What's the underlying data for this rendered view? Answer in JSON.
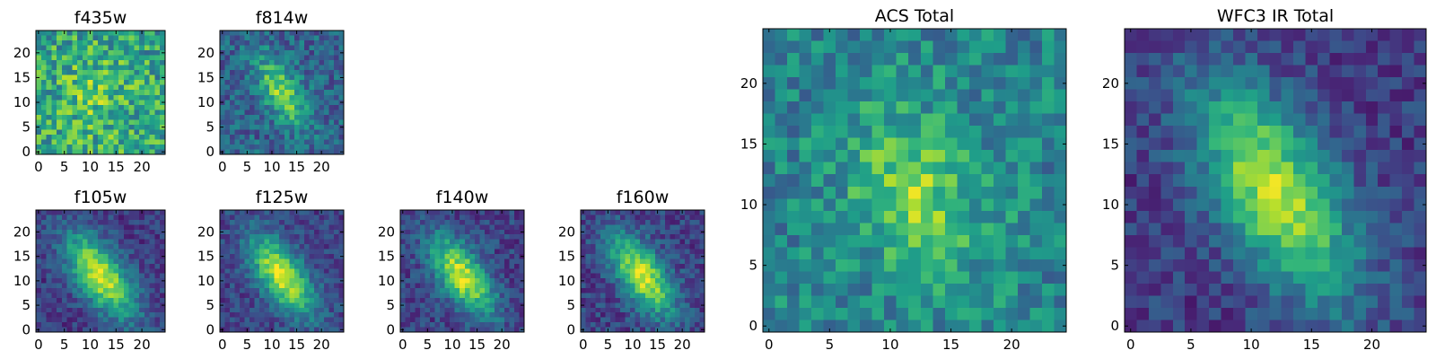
{
  "figure": {
    "colormap": "viridis",
    "grid_size": 25,
    "panels": [
      {
        "id": "f435w",
        "title": "f435w",
        "xticks": [
          "0",
          "5",
          "10",
          "15",
          "20"
        ],
        "yticks": [
          "0",
          "5",
          "10",
          "15",
          "20"
        ],
        "signal": 0.15,
        "noise": 0.42,
        "base": 0.58,
        "sigma_major": 6,
        "sigma_minor": 5,
        "angle": 0.3,
        "cx": 11,
        "cy": 11,
        "seed": 11
      },
      {
        "id": "f814w",
        "title": "f814w",
        "xticks": [
          "0",
          "5",
          "10",
          "15",
          "20"
        ],
        "yticks": [
          "0",
          "5",
          "10",
          "15",
          "20"
        ],
        "signal": 0.5,
        "noise": 0.28,
        "base": 0.32,
        "sigma_major": 5.5,
        "sigma_minor": 2.5,
        "angle": 0.55,
        "cx": 12,
        "cy": 12,
        "seed": 23
      },
      {
        "id": "f105w",
        "title": "f105w",
        "xticks": [
          "0",
          "5",
          "10",
          "15",
          "20"
        ],
        "yticks": [
          "0",
          "5",
          "10",
          "15",
          "20"
        ],
        "signal": 0.75,
        "noise": 0.2,
        "base": 0.18,
        "sigma_major": 7,
        "sigma_minor": 3.2,
        "angle": 0.6,
        "cx": 12,
        "cy": 11,
        "seed": 37
      },
      {
        "id": "f125w",
        "title": "f125w",
        "xticks": [
          "0",
          "5",
          "10",
          "15",
          "20"
        ],
        "yticks": [
          "0",
          "5",
          "10",
          "15",
          "20"
        ],
        "signal": 0.75,
        "noise": 0.2,
        "base": 0.2,
        "sigma_major": 6.5,
        "sigma_minor": 3,
        "angle": 0.6,
        "cx": 12,
        "cy": 11,
        "seed": 41
      },
      {
        "id": "f140w",
        "title": "f140w",
        "xticks": [
          "0",
          "5",
          "10",
          "15",
          "20"
        ],
        "yticks": [
          "0",
          "5",
          "10",
          "15",
          "20"
        ],
        "signal": 0.72,
        "noise": 0.22,
        "base": 0.2,
        "sigma_major": 6.5,
        "sigma_minor": 3,
        "angle": 0.6,
        "cx": 12,
        "cy": 11,
        "seed": 53
      },
      {
        "id": "f160w",
        "title": "f160w",
        "xticks": [
          "0",
          "5",
          "10",
          "15",
          "20"
        ],
        "yticks": [
          "0",
          "5",
          "10",
          "15",
          "20"
        ],
        "signal": 0.74,
        "noise": 0.22,
        "base": 0.2,
        "sigma_major": 6.5,
        "sigma_minor": 3,
        "angle": 0.6,
        "cx": 12,
        "cy": 11,
        "seed": 67
      },
      {
        "id": "acs-total",
        "title": "ACS Total",
        "xticks": [
          "0",
          "5",
          "10",
          "15",
          "20"
        ],
        "yticks": [
          "0",
          "5",
          "10",
          "15",
          "20"
        ],
        "signal": 0.35,
        "noise": 0.3,
        "base": 0.45,
        "sigma_major": 5,
        "sigma_minor": 3.5,
        "angle": 0.4,
        "cx": 12,
        "cy": 11,
        "seed": 79
      },
      {
        "id": "wfc3-ir-total",
        "title": "WFC3 IR Total",
        "xticks": [
          "0",
          "5",
          "10",
          "15",
          "20"
        ],
        "yticks": [
          "0",
          "5",
          "10",
          "15",
          "20"
        ],
        "signal": 0.72,
        "noise": 0.2,
        "base": 0.18,
        "sigma_major": 7,
        "sigma_minor": 3.2,
        "angle": 0.55,
        "cx": 12,
        "cy": 11,
        "seed": 97
      }
    ]
  }
}
